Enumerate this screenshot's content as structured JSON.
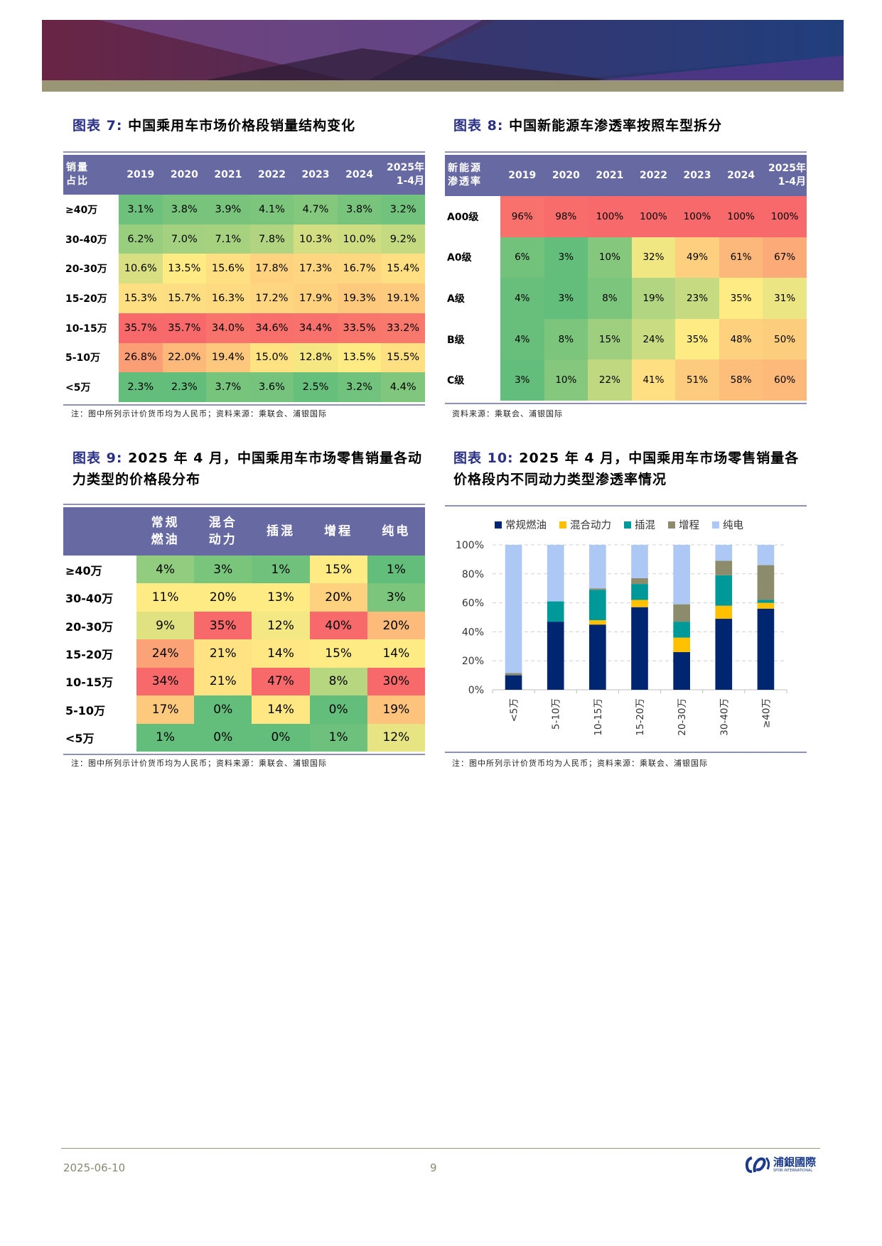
{
  "colors": {
    "header_bg": "#676aa2",
    "title_label": "#2a2f86",
    "low": "#63be7b",
    "mid": "#ffeb84",
    "high": "#f8696b"
  },
  "fig7": {
    "label": "图表 7:",
    "title": "中国乘用车市场价格段销量结构变化",
    "corner": [
      "销量",
      "占比"
    ],
    "columns": [
      "2019",
      "2020",
      "2021",
      "2022",
      "2023",
      "2024",
      [
        "2025年",
        "1-4月"
      ]
    ],
    "rows": [
      {
        "label": "≥40万",
        "values": [
          "3.1%",
          "3.8%",
          "3.9%",
          "4.1%",
          "4.7%",
          "3.8%",
          "3.2%"
        ]
      },
      {
        "label": "30-40万",
        "values": [
          "6.2%",
          "7.0%",
          "7.1%",
          "7.8%",
          "10.3%",
          "10.0%",
          "9.2%"
        ]
      },
      {
        "label": "20-30万",
        "values": [
          "10.6%",
          "13.5%",
          "15.6%",
          "17.8%",
          "17.3%",
          "16.7%",
          "15.4%"
        ]
      },
      {
        "label": "15-20万",
        "values": [
          "15.3%",
          "15.7%",
          "16.3%",
          "17.2%",
          "17.9%",
          "19.3%",
          "19.1%"
        ]
      },
      {
        "label": "10-15万",
        "values": [
          "35.7%",
          "35.7%",
          "34.0%",
          "34.6%",
          "34.4%",
          "33.5%",
          "33.2%"
        ]
      },
      {
        "label": "5-10万",
        "values": [
          "26.8%",
          "22.0%",
          "19.4%",
          "15.0%",
          "12.8%",
          "13.5%",
          "15.5%"
        ]
      },
      {
        "label": "<5万",
        "values": [
          "2.3%",
          "2.3%",
          "3.7%",
          "3.6%",
          "2.5%",
          "3.2%",
          "4.4%"
        ]
      }
    ],
    "note": "注：图中所列示计价货币均为人民币；资料来源：乘联会、浦银国际"
  },
  "fig8": {
    "label": "图表 8:",
    "title": "中国新能源车渗透率按照车型拆分",
    "corner": [
      "新能源",
      "渗透率"
    ],
    "columns": [
      "2019",
      "2020",
      "2021",
      "2022",
      "2023",
      "2024",
      [
        "2025年",
        "1-4月"
      ]
    ],
    "rows": [
      {
        "label": "A00级",
        "values": [
          "96%",
          "98%",
          "100%",
          "100%",
          "100%",
          "100%",
          "100%"
        ]
      },
      {
        "label": "A0级",
        "values": [
          "6%",
          "3%",
          "10%",
          "32%",
          "49%",
          "61%",
          "67%"
        ]
      },
      {
        "label": "A级",
        "values": [
          "4%",
          "3%",
          "8%",
          "19%",
          "23%",
          "35%",
          "31%"
        ]
      },
      {
        "label": "B级",
        "values": [
          "4%",
          "8%",
          "15%",
          "24%",
          "35%",
          "48%",
          "50%"
        ]
      },
      {
        "label": "C级",
        "values": [
          "3%",
          "10%",
          "22%",
          "41%",
          "51%",
          "58%",
          "60%"
        ]
      }
    ],
    "note": "资料来源：乘联会、浦银国际"
  },
  "fig9": {
    "label": "图表 9:",
    "title": "2025 年 4 月，中国乘用车市场零售销量各动力类型的价格段分布",
    "corner": [
      "",
      ""
    ],
    "columns": [
      [
        "常规",
        "燃油"
      ],
      [
        "混合",
        "动力"
      ],
      "插混",
      "增程",
      "纯电"
    ],
    "rows": [
      {
        "label": "≥40万",
        "values": [
          "4%",
          "3%",
          "1%",
          "15%",
          "1%"
        ]
      },
      {
        "label": "30-40万",
        "values": [
          "11%",
          "20%",
          "13%",
          "20%",
          "3%"
        ]
      },
      {
        "label": "20-30万",
        "values": [
          "9%",
          "35%",
          "12%",
          "40%",
          "20%"
        ]
      },
      {
        "label": "15-20万",
        "values": [
          "24%",
          "21%",
          "14%",
          "15%",
          "14%"
        ]
      },
      {
        "label": "10-15万",
        "values": [
          "34%",
          "21%",
          "47%",
          "8%",
          "30%"
        ]
      },
      {
        "label": "5-10万",
        "values": [
          "17%",
          "0%",
          "14%",
          "0%",
          "19%"
        ]
      },
      {
        "label": "<5万",
        "values": [
          "1%",
          "0%",
          "0%",
          "1%",
          "12%"
        ]
      }
    ],
    "note": "注：图中所列示计价货币均为人民币；资料来源：乘联会、浦银国际"
  },
  "fig10": {
    "label": "图表 10:",
    "title": "2025 年 4 月，中国乘用车市场零售销量各价格段内不同动力类型渗透率情况",
    "note": "注：图中所列示计价货币均为人民币；资料来源：乘联会、浦银国际"
  },
  "chart_data": {
    "type": "bar",
    "stacked": true,
    "categories": [
      "<5万",
      "5-10万",
      "10-15万",
      "15-20万",
      "20-30万",
      "30-40万",
      "≥40万"
    ],
    "series": [
      {
        "name": "常规燃油",
        "color": "#002672",
        "values": [
          10,
          47,
          45,
          57,
          26,
          49,
          56
        ]
      },
      {
        "name": "混合动力",
        "color": "#ffc000",
        "values": [
          0,
          0,
          3,
          5,
          10,
          9,
          4
        ]
      },
      {
        "name": "插混",
        "color": "#009999",
        "values": [
          0,
          14,
          21,
          11,
          11,
          21,
          2
        ]
      },
      {
        "name": "增程",
        "color": "#8c8c6c",
        "values": [
          1.5,
          0,
          1,
          4,
          12,
          10,
          24
        ]
      },
      {
        "name": "纯电",
        "color": "#adc8f5",
        "values": [
          88.5,
          39,
          30,
          23,
          41,
          11,
          14
        ]
      }
    ],
    "ylim": [
      0,
      100
    ],
    "yticks": [
      "0%",
      "20%",
      "40%",
      "60%",
      "80%",
      "100%"
    ],
    "grid": true,
    "legend": "top"
  },
  "footer": {
    "date": "2025-06-10",
    "page": "9",
    "logo_cn": "浦銀國際",
    "logo_en": "SPDB INTERNATIONAL"
  }
}
